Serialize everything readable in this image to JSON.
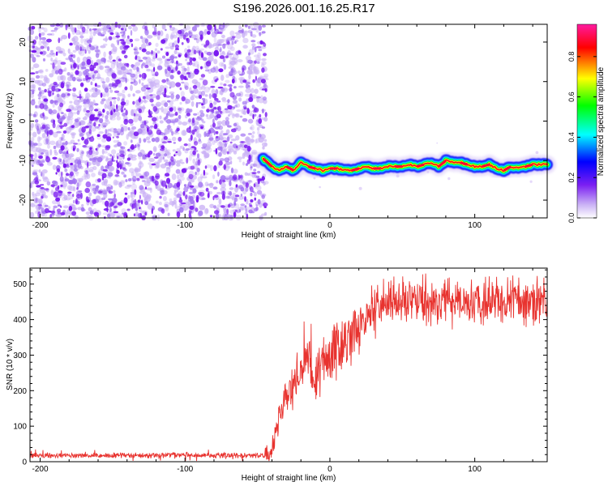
{
  "figure": {
    "title": "S196.2026.001.16.25.R17"
  },
  "colors": {
    "series": "#e8332f",
    "speckle_dark": "#7a1af0",
    "speckle_light": "#c9b0f5",
    "background": "#ffffff"
  },
  "chart_data": [
    {
      "id": "spectrogram",
      "type": "heatmap",
      "title": "S196.2026.001.16.25.R17",
      "xlabel": "Height of straight line (km)",
      "ylabel": "Frequency (Hz)",
      "xlim": [
        -207,
        150
      ],
      "ylim": [
        -24.5,
        24.5
      ],
      "xticks": [
        -200,
        -100,
        0,
        100
      ],
      "yticks": [
        -20,
        -10,
        0,
        10,
        20
      ],
      "noise_region": {
        "x_from": -207,
        "x_to": -44,
        "y_from": -24.5,
        "y_to": 24.5
      },
      "signal_track": {
        "x": [
          -46,
          -40,
          -35,
          -30,
          -25,
          -20,
          -15,
          -10,
          -5,
          0,
          5,
          10,
          15,
          20,
          25,
          30,
          35,
          40,
          45,
          50,
          55,
          60,
          65,
          70,
          75,
          80,
          85,
          90,
          95,
          100,
          105,
          110,
          115,
          120,
          125,
          130,
          135,
          140,
          145,
          150
        ],
        "y": [
          -9.5,
          -11.5,
          -12.5,
          -11.5,
          -12.5,
          -10.5,
          -11.5,
          -12,
          -12.5,
          -12,
          -12,
          -12.5,
          -12.5,
          -12,
          -11.5,
          -12,
          -12,
          -11.5,
          -11.5,
          -11.5,
          -11,
          -11.5,
          -11,
          -10.5,
          -11.5,
          -10,
          -10.5,
          -10.5,
          -11,
          -11.5,
          -11.5,
          -11,
          -12,
          -12.5,
          -11.5,
          -12,
          -11.5,
          -11,
          -11,
          -11
        ],
        "peak_amplitude": 0.95
      },
      "colorbar": {
        "label": "Normalized spectral amplitude",
        "range": [
          0,
          0.96
        ],
        "ticks": [
          0.0,
          0.2,
          0.4,
          0.6,
          0.8
        ],
        "tick_labels": [
          "0.0",
          "0.2",
          "0.4",
          "0.6",
          "0.8"
        ],
        "colors": [
          "#ffffff",
          "#c9b0f5",
          "#7b1ff2",
          "#0000ff",
          "#00ffff",
          "#00ff00",
          "#ffff00",
          "#ff0000",
          "#ff1aa0"
        ]
      }
    },
    {
      "id": "snr",
      "type": "line",
      "xlabel": "Height of straight line (km)",
      "ylabel": "SNR (10 * v/v)",
      "xlim": [
        -207,
        150
      ],
      "ylim": [
        0,
        545
      ],
      "xticks": [
        -200,
        -100,
        0,
        100
      ],
      "yticks": [
        0,
        100,
        200,
        300,
        400,
        500
      ],
      "series": [
        {
          "name": "SNR",
          "x": [
            -207,
            -180,
            -150,
            -120,
            -100,
            -90,
            -80,
            -70,
            -60,
            -50,
            -45,
            -42,
            -38,
            -35,
            -32,
            -30,
            -27,
            -24,
            -20,
            -17,
            -14,
            -12,
            -10,
            -8,
            -5,
            -2,
            0,
            5,
            10,
            15,
            20,
            25,
            30,
            35,
            40,
            45,
            50,
            60,
            70,
            80,
            90,
            100,
            110,
            120,
            130,
            140,
            150
          ],
          "y": [
            18,
            17,
            18,
            17,
            20,
            18,
            17,
            18,
            17,
            18,
            17,
            20,
            60,
            120,
            160,
            200,
            190,
            230,
            250,
            270,
            290,
            230,
            215,
            240,
            270,
            290,
            300,
            320,
            335,
            355,
            385,
            405,
            425,
            440,
            450,
            455,
            455,
            450,
            455,
            450,
            455,
            452,
            450,
            450,
            450,
            455,
            455
          ]
        }
      ]
    }
  ]
}
